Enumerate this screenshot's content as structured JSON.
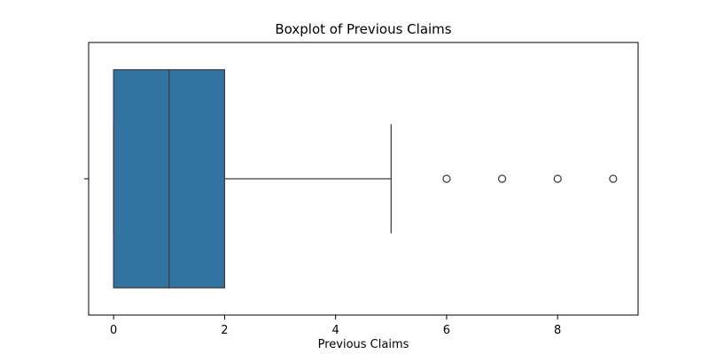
{
  "chart_data": {
    "type": "boxplot",
    "title": "Boxplot of Previous Claims",
    "xlabel": "Previous Claims",
    "ylabel": "",
    "orientation": "horizontal",
    "xlim": [
      -0.45,
      9.45
    ],
    "x_ticks": [
      0,
      2,
      4,
      6,
      8
    ],
    "x_tick_labels": [
      "0",
      "2",
      "4",
      "6",
      "8"
    ],
    "grid": false,
    "legend": "none",
    "box": {
      "min": 0,
      "q1": 0,
      "median": 1,
      "q3": 2,
      "whisker_low": 0,
      "whisker_high": 5
    },
    "outliers": [
      6,
      7,
      8,
      9
    ],
    "colors": {
      "box_fill": "#3274a1",
      "line": "#3d3d3d",
      "outlier_edge": "#3d3d3d"
    }
  }
}
